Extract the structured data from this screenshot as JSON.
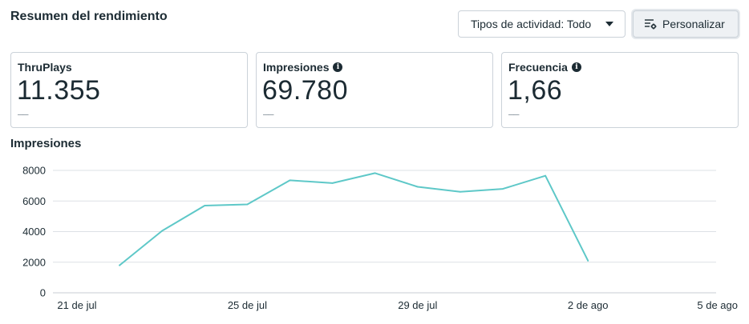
{
  "header": {
    "title": "Resumen del rendimiento",
    "activity_filter": "Tipos de actividad: Todo",
    "customize_label": "Personalizar"
  },
  "metrics": [
    {
      "label": "ThruPlays",
      "value": "11.355",
      "delta": "––",
      "info": false
    },
    {
      "label": "Impresiones",
      "value": "69.780",
      "delta": "––",
      "info": true
    },
    {
      "label": "Frecuencia",
      "value": "1,66",
      "delta": "––",
      "info": true
    }
  ],
  "icons": {
    "activity_filter": "caret-down-icon",
    "customize": "settings-sliders-icon",
    "info": "info-icon"
  },
  "colors": {
    "line": "#5ec8c8",
    "gridline": "#dde1e5",
    "text": "#1c2b33"
  },
  "chart_data": {
    "type": "line",
    "title": "Impresiones",
    "x": [
      "2024-07-22",
      "2024-07-23",
      "2024-07-24",
      "2024-07-25",
      "2024-07-26",
      "2024-07-27",
      "2024-07-28",
      "2024-07-29",
      "2024-07-30",
      "2024-07-31",
      "2024-08-01",
      "2024-08-02"
    ],
    "series": [
      {
        "values": [
          1800,
          4050,
          5700,
          5780,
          7350,
          7170,
          7820,
          6930,
          6600,
          6790,
          7650,
          2100
        ]
      }
    ],
    "x_ticks": [
      "21 de jul",
      "25 de jul",
      "29 de jul",
      "2 de ago",
      "5 de ago"
    ],
    "x_tick_dates": [
      "2024-07-21",
      "2024-07-25",
      "2024-07-29",
      "2024-08-02",
      "2024-08-05"
    ],
    "y_ticks": [
      0,
      2000,
      4000,
      6000,
      8000
    ],
    "ylim": [
      0,
      8000
    ],
    "grid": true
  }
}
